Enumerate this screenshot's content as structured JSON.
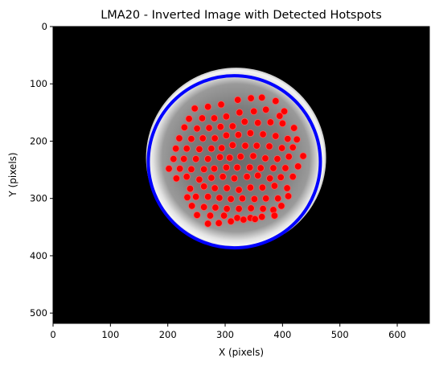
{
  "chart_data": {
    "type": "scatter",
    "title": "LMA20 - Inverted Image with Detected Hotspots",
    "xlabel": "X (pixels)",
    "ylabel": "Y (pixels)",
    "xlim": [
      0,
      656
    ],
    "ylim": [
      518,
      0
    ],
    "xticks": [
      0,
      100,
      200,
      300,
      400,
      500,
      600
    ],
    "yticks": [
      0,
      100,
      200,
      300,
      400,
      500
    ],
    "image": {
      "description": "inverted grayscale fiber end-face",
      "background_color": "#000000",
      "disk_center": [
        319,
        229
      ],
      "disk_radius": 112,
      "ring_color": "#ffffff"
    },
    "circle": {
      "name": "",
      "center": [
        316,
        236
      ],
      "radius": 150,
      "color": "#0000ff"
    },
    "hotspot_color": "#ff0000",
    "series": [
      {
        "name": "",
        "points": [
          [
            247,
            143
          ],
          [
            270,
            140
          ],
          [
            293,
            136
          ],
          [
            322,
            128
          ],
          [
            345,
            125
          ],
          [
            364,
            124
          ],
          [
            388,
            130
          ],
          [
            403,
            148
          ],
          [
            237,
            161
          ],
          [
            260,
            160
          ],
          [
            281,
            160
          ],
          [
            302,
            157
          ],
          [
            325,
            150
          ],
          [
            350,
            148
          ],
          [
            371,
            145
          ],
          [
            395,
            156
          ],
          [
            229,
            176
          ],
          [
            251,
            178
          ],
          [
            272,
            177
          ],
          [
            292,
            175
          ],
          [
            313,
            174
          ],
          [
            334,
            166
          ],
          [
            357,
            168
          ],
          [
            379,
            167
          ],
          [
            400,
            169
          ],
          [
            420,
            177
          ],
          [
            220,
            195
          ],
          [
            241,
            196
          ],
          [
            261,
            195
          ],
          [
            282,
            195
          ],
          [
            302,
            190
          ],
          [
            323,
            189
          ],
          [
            344,
            186
          ],
          [
            366,
            188
          ],
          [
            388,
            191
          ],
          [
            409,
            196
          ],
          [
            425,
            197
          ],
          [
            214,
            213
          ],
          [
            233,
            213
          ],
          [
            255,
            214
          ],
          [
            276,
            213
          ],
          [
            294,
            212
          ],
          [
            313,
            207
          ],
          [
            335,
            208
          ],
          [
            355,
            208
          ],
          [
            377,
            209
          ],
          [
            399,
            212
          ],
          [
            418,
            211
          ],
          [
            436,
            226
          ],
          [
            202,
            248
          ],
          [
            210,
            231
          ],
          [
            228,
            231
          ],
          [
            249,
            231
          ],
          [
            270,
            231
          ],
          [
            291,
            228
          ],
          [
            308,
            229
          ],
          [
            327,
            227
          ],
          [
            349,
            226
          ],
          [
            370,
            230
          ],
          [
            391,
            231
          ],
          [
            411,
            227
          ],
          [
            221,
            248
          ],
          [
            241,
            249
          ],
          [
            263,
            249
          ],
          [
            281,
            248
          ],
          [
            302,
            246
          ],
          [
            321,
            246
          ],
          [
            343,
            246
          ],
          [
            362,
            247
          ],
          [
            384,
            247
          ],
          [
            405,
            247
          ],
          [
            427,
            244
          ],
          [
            215,
            265
          ],
          [
            233,
            262
          ],
          [
            255,
            267
          ],
          [
            276,
            264
          ],
          [
            296,
            262
          ],
          [
            316,
            265
          ],
          [
            338,
            262
          ],
          [
            357,
            260
          ],
          [
            378,
            265
          ],
          [
            397,
            263
          ],
          [
            418,
            262
          ],
          [
            234,
            298
          ],
          [
            239,
            283
          ],
          [
            263,
            279
          ],
          [
            282,
            282
          ],
          [
            303,
            282
          ],
          [
            324,
            285
          ],
          [
            344,
            281
          ],
          [
            365,
            281
          ],
          [
            386,
            278
          ],
          [
            408,
            282
          ],
          [
            249,
            297
          ],
          [
            270,
            297
          ],
          [
            290,
            299
          ],
          [
            310,
            301
          ],
          [
            330,
            300
          ],
          [
            351,
            301
          ],
          [
            371,
            300
          ],
          [
            392,
            300
          ],
          [
            410,
            296
          ],
          [
            242,
            313
          ],
          [
            263,
            315
          ],
          [
            283,
            316
          ],
          [
            303,
            318
          ],
          [
            324,
            318
          ],
          [
            345,
            317
          ],
          [
            366,
            318
          ],
          [
            384,
            320
          ],
          [
            398,
            313
          ],
          [
            251,
            329
          ],
          [
            274,
            330
          ],
          [
            298,
            330
          ],
          [
            321,
            334
          ],
          [
            344,
            334
          ],
          [
            364,
            332
          ],
          [
            386,
            330
          ],
          [
            270,
            344
          ],
          [
            289,
            343
          ],
          [
            310,
            340
          ],
          [
            332,
            337
          ],
          [
            352,
            336
          ]
        ]
      }
    ]
  }
}
